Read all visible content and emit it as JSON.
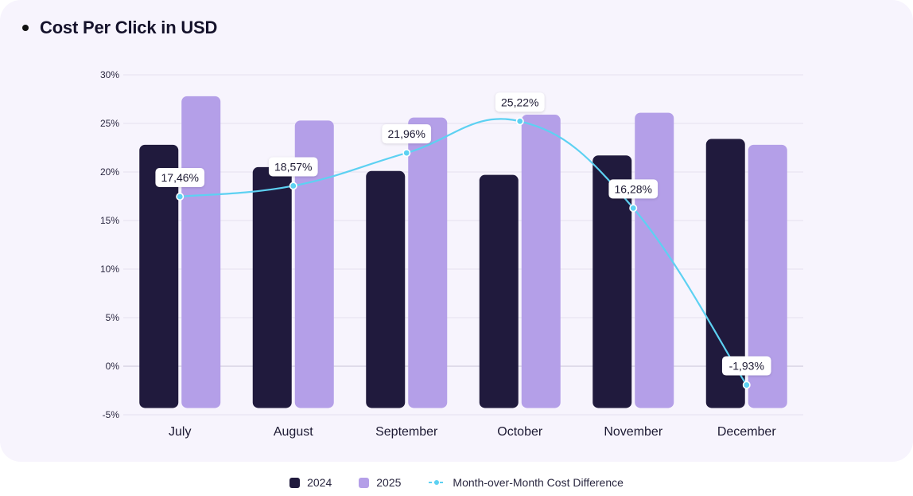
{
  "title": "Cost Per Click in USD",
  "colors": {
    "series_2024": "#201a3d",
    "series_2025": "#b49fe8",
    "line": "#5dd1f2",
    "grid": "#e4e0ee",
    "zero_line": "#c9c4d6",
    "card_bg": "#f7f4fd"
  },
  "legend": {
    "item_2024": "2024",
    "item_2025": "2025",
    "item_line": "Month-over-Month Cost Difference"
  },
  "chart_data": {
    "type": "bar",
    "title": "Cost Per Click in USD",
    "categories": [
      "July",
      "August",
      "September",
      "October",
      "November",
      "December"
    ],
    "ylim": [
      -5,
      30
    ],
    "yticks": [
      30,
      25,
      20,
      15,
      10,
      5,
      0,
      -5
    ],
    "ytick_labels": [
      "30%",
      "25%",
      "20%",
      "15%",
      "10%",
      "5%",
      "0%",
      "-5%"
    ],
    "bar_baseline": -4.3,
    "grid": true,
    "legend_position": "bottom-center",
    "series": [
      {
        "name": "2024",
        "type": "bar",
        "values": [
          22.8,
          20.5,
          20.1,
          19.7,
          21.7,
          23.4
        ]
      },
      {
        "name": "2025",
        "type": "bar",
        "values": [
          27.8,
          25.3,
          25.6,
          25.9,
          26.1,
          22.8
        ]
      },
      {
        "name": "Month-over-Month Cost Difference",
        "type": "line",
        "values": [
          17.46,
          18.57,
          21.96,
          25.22,
          16.28,
          -1.93
        ],
        "labels": [
          "17,46%",
          "18,57%",
          "21,96%",
          "25,22%",
          "16,28%",
          "-1,93%"
        ]
      }
    ]
  }
}
